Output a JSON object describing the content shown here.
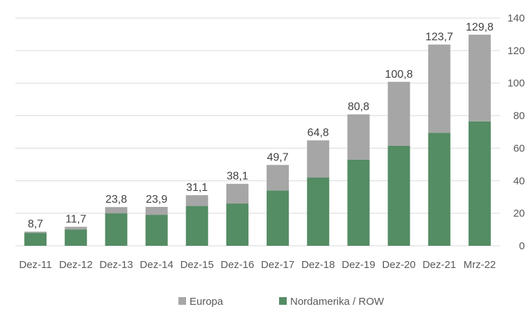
{
  "chart_data": {
    "type": "bar",
    "stacked": true,
    "categories": [
      "Dez-11",
      "Dez-12",
      "Dez-13",
      "Dez-14",
      "Dez-15",
      "Dez-16",
      "Dez-17",
      "Dez-18",
      "Dez-19",
      "Dez-20",
      "Dez-21",
      "Mrz-22"
    ],
    "series": [
      {
        "name": "Nordamerika / ROW",
        "color": "#548c64",
        "values": [
          8.0,
          10.0,
          20.0,
          19.0,
          24.5,
          26.0,
          34.0,
          42.0,
          53.0,
          61.5,
          69.5,
          76.5
        ]
      },
      {
        "name": "Europa",
        "color": "#a6a6a6",
        "values": [
          0.7,
          1.7,
          3.8,
          4.9,
          6.6,
          12.1,
          15.7,
          22.8,
          27.8,
          39.3,
          54.2,
          53.3
        ]
      }
    ],
    "totals": [
      "8,7",
      "11,7",
      "23,8",
      "23,9",
      "31,1",
      "38,1",
      "49,7",
      "64,8",
      "80,8",
      "100,8",
      "123,7",
      "129,8"
    ],
    "total_values": [
      8.7,
      11.7,
      23.8,
      23.9,
      31.1,
      38.1,
      49.7,
      64.8,
      80.8,
      100.8,
      123.7,
      129.8
    ],
    "ylim": [
      0,
      140
    ],
    "yticks": [
      "0",
      "20",
      "40",
      "60",
      "80",
      "100",
      "120",
      "140"
    ],
    "ytick_values": [
      0,
      20,
      40,
      60,
      80,
      100,
      120,
      140
    ],
    "yaxis_position": "right",
    "grid": true,
    "legend_position": "bottom",
    "legend": [
      {
        "label": "Europa",
        "color": "#a6a6a6"
      },
      {
        "label": "Nordamerika / ROW",
        "color": "#548c64"
      }
    ],
    "title": "",
    "xlabel": "",
    "ylabel": ""
  }
}
